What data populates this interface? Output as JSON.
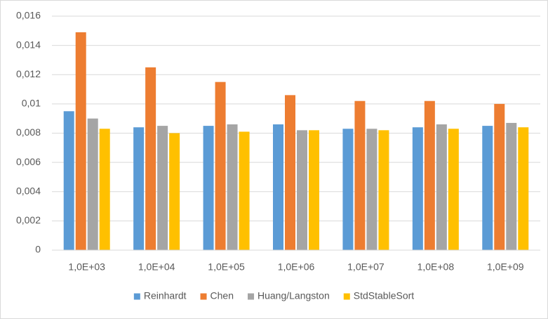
{
  "chart_data": {
    "type": "bar",
    "categories": [
      "1,0E+03",
      "1,0E+04",
      "1,0E+05",
      "1,0E+06",
      "1,0E+07",
      "1,0E+08",
      "1,0E+09"
    ],
    "series": [
      {
        "name": "Reinhardt",
        "color": "#5b9bd5",
        "values": [
          0.0095,
          0.0084,
          0.0085,
          0.0086,
          0.0083,
          0.0084,
          0.0085
        ]
      },
      {
        "name": "Chen",
        "color": "#ed7d31",
        "values": [
          0.0149,
          0.0125,
          0.0115,
          0.0106,
          0.0102,
          0.0102,
          0.01
        ]
      },
      {
        "name": "Huang/Langston",
        "color": "#a5a5a5",
        "values": [
          0.009,
          0.0085,
          0.0086,
          0.0082,
          0.0083,
          0.0086,
          0.0087
        ]
      },
      {
        "name": "StdStableSort",
        "color": "#ffc000",
        "values": [
          0.0083,
          0.008,
          0.0081,
          0.0082,
          0.0082,
          0.0083,
          0.0084
        ]
      }
    ],
    "ylim": [
      0,
      0.016
    ],
    "yticks": [
      0,
      {
        "value": 0.002,
        "label": "0,002"
      },
      {
        "value": 0.004,
        "label": "0,004"
      },
      {
        "value": 0.006,
        "label": "0,006"
      },
      {
        "value": 0.008,
        "label": "0,008"
      },
      {
        "value": 0.01,
        "label": "0,01"
      },
      {
        "value": 0.012,
        "label": "0,012"
      },
      {
        "value": 0.014,
        "label": "0,014"
      },
      {
        "value": 0.016,
        "label": "0,016"
      }
    ],
    "grid": true,
    "legend": "bottom"
  }
}
